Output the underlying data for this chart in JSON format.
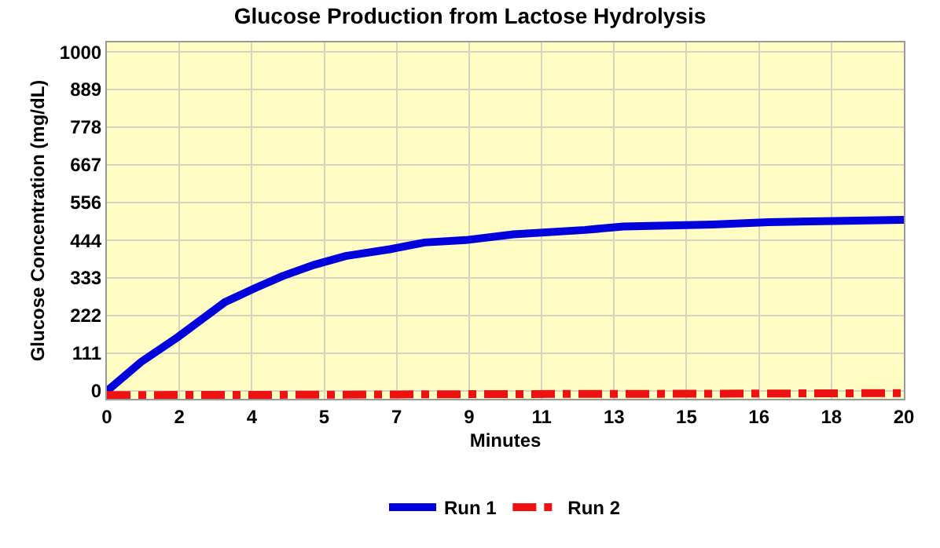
{
  "chart_data": {
    "type": "line",
    "title": "Glucose Production from Lactose Hydrolysis",
    "xlabel": "Minutes",
    "ylabel": "Glucose Concentration (mg/dL)",
    "series": [
      {
        "name": "Run 1",
        "color": "#0000dd",
        "line_style": "solid",
        "x": [
          0,
          0.86,
          1.78,
          2.96,
          3.75,
          4.41,
          5.2,
          5.99,
          7.1,
          7.97,
          9.0,
          10.2,
          12.0,
          12.96,
          15.2,
          16.6,
          20
        ],
        "values": [
          0,
          86,
          159,
          262,
          305,
          339,
          372,
          398,
          418,
          438,
          445,
          462,
          475,
          485,
          491,
          498,
          505
        ]
      },
      {
        "name": "Run 2",
        "color": "#ee1111",
        "line_style": "dashed",
        "x": [
          0,
          5,
          10,
          15,
          20
        ],
        "values": [
          -12,
          -11,
          -9,
          -8,
          -6
        ]
      }
    ],
    "xlim": [
      0,
      20
    ],
    "ylim": [
      -23,
      1028
    ],
    "xticks": [
      0,
      {
        "value": 1.818,
        "label": "2"
      },
      {
        "value": 3.636,
        "label": "4"
      },
      {
        "value": 5.455,
        "label": "5"
      },
      {
        "value": 7.273,
        "label": "7"
      },
      {
        "value": 9.091,
        "label": "9"
      },
      {
        "value": 10.909,
        "label": "11"
      },
      {
        "value": 12.727,
        "label": "13"
      },
      {
        "value": 14.545,
        "label": "15"
      },
      {
        "value": 16.364,
        "label": "16"
      },
      {
        "value": 18.182,
        "label": "18"
      },
      20
    ],
    "yticks": [
      0,
      {
        "value": 111.1,
        "label": "111"
      },
      {
        "value": 222.2,
        "label": "222"
      },
      {
        "value": 333.3,
        "label": "333"
      },
      {
        "value": 444.4,
        "label": "444"
      },
      {
        "value": 555.6,
        "label": "556"
      },
      {
        "value": 666.7,
        "label": "667"
      },
      {
        "value": 777.8,
        "label": "778"
      },
      {
        "value": 888.9,
        "label": "889"
      },
      1000
    ],
    "grid": true,
    "legend": "bottom",
    "marker": "none"
  }
}
